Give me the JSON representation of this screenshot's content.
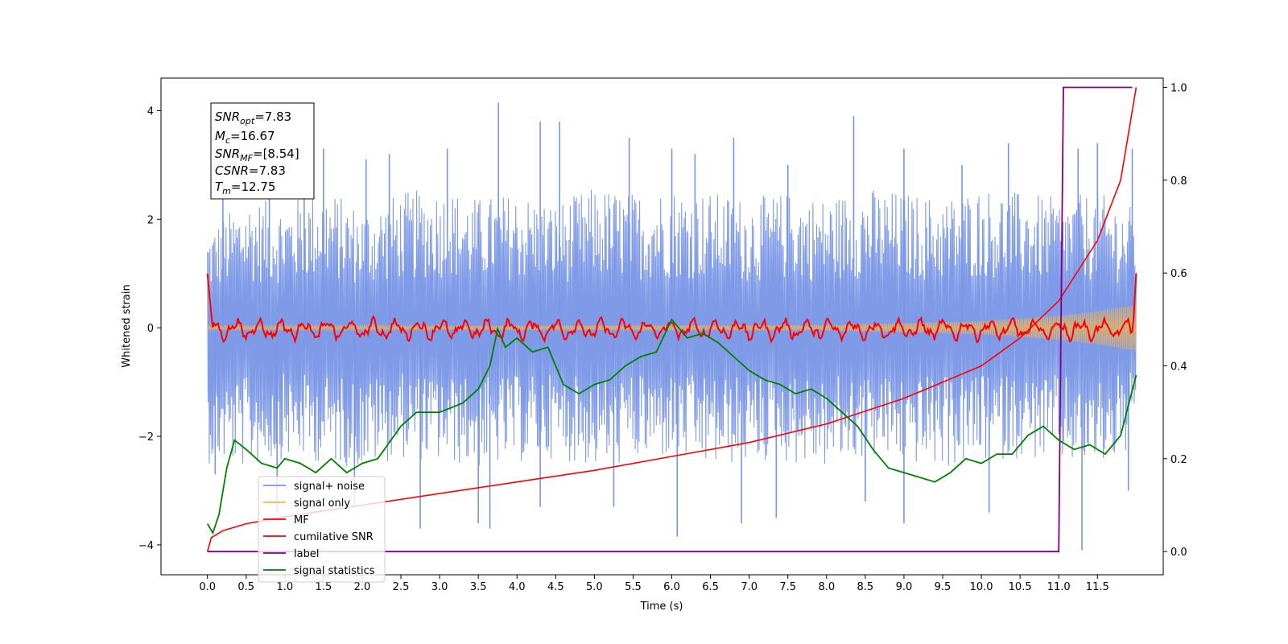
{
  "chart_data": {
    "type": "line",
    "title": "",
    "xlabel": "Time (s)",
    "ylabel": "Whitened strain",
    "xlim": [
      -0.6,
      12.35
    ],
    "ylim_left": [
      -4.55,
      4.6
    ],
    "ylim_right": [
      -0.05,
      1.02
    ],
    "x_ticks": [
      0.0,
      0.5,
      1.0,
      1.5,
      2.0,
      2.5,
      3.0,
      3.5,
      4.0,
      4.5,
      5.0,
      5.5,
      6.0,
      6.5,
      7.0,
      7.5,
      8.0,
      8.5,
      9.0,
      9.5,
      10.0,
      10.5,
      11.0,
      11.5
    ],
    "x_tick_labels": [
      "0.0",
      "0.5",
      "1.0",
      "1.5",
      "2.0",
      "2.5",
      "3.0",
      "3.5",
      "4.0",
      "4.5",
      "5.0",
      "5.5",
      "6.0",
      "6.5",
      "7.0",
      "7.5",
      "8.0",
      "8.5",
      "9.0",
      "9.5",
      "10.0",
      "10.5",
      "11.0",
      "11.5"
    ],
    "y_left_ticks": [
      -4,
      -2,
      0,
      2,
      4
    ],
    "y_left_tick_labels": [
      "−4",
      "−2",
      "0",
      "2",
      "4"
    ],
    "y_right_ticks": [
      0.0,
      0.2,
      0.4,
      0.6,
      0.8,
      1.0
    ],
    "y_right_tick_labels": [
      "0.0",
      "0.2",
      "0.4",
      "0.6",
      "0.8",
      "1.0"
    ],
    "grid": false,
    "legend_position": "lower-left",
    "stats_box": {
      "snr_opt": {
        "base": "SNR",
        "sub": "opt",
        "value": "=7.83"
      },
      "mc": {
        "base": "M",
        "sub": "c",
        "value": "=16.67"
      },
      "snr_mf": {
        "base": "SNR",
        "sub": "MF",
        "value": "=[8.54]"
      },
      "csnr": {
        "base": "CSNR",
        "value": "=7.83"
      },
      "tm": {
        "base": "T",
        "sub": "m",
        "value": "=12.75"
      }
    },
    "series": [
      {
        "name": "signal+ noise",
        "axis": "left",
        "color": "#7895e6",
        "envelope_upper": [
          [
            0.0,
            1.8
          ],
          [
            0.5,
            2.4
          ],
          [
            1.0,
            2.3
          ],
          [
            1.5,
            2.6
          ],
          [
            2.0,
            2.2
          ],
          [
            2.5,
            2.5
          ],
          [
            3.0,
            2.6
          ],
          [
            3.5,
            2.4
          ],
          [
            4.0,
            2.5
          ],
          [
            4.5,
            2.3
          ],
          [
            5.0,
            2.6
          ],
          [
            5.5,
            2.5
          ],
          [
            6.0,
            2.6
          ],
          [
            6.5,
            2.5
          ],
          [
            7.0,
            2.4
          ],
          [
            7.5,
            2.5
          ],
          [
            8.0,
            2.4
          ],
          [
            8.5,
            2.6
          ],
          [
            9.0,
            2.5
          ],
          [
            9.5,
            2.4
          ],
          [
            10.0,
            2.6
          ],
          [
            10.5,
            2.5
          ],
          [
            11.0,
            2.4
          ],
          [
            11.5,
            2.5
          ],
          [
            12.0,
            2.2
          ]
        ],
        "envelope_lower": [
          [
            0.0,
            -2.5
          ],
          [
            0.5,
            -2.6
          ],
          [
            1.0,
            -2.4
          ],
          [
            1.5,
            -2.5
          ],
          [
            2.0,
            -2.6
          ],
          [
            2.5,
            -2.4
          ],
          [
            3.0,
            -2.5
          ],
          [
            3.5,
            -2.6
          ],
          [
            4.0,
            -2.5
          ],
          [
            4.5,
            -2.4
          ],
          [
            5.0,
            -2.6
          ],
          [
            5.5,
            -2.5
          ],
          [
            6.0,
            -2.4
          ],
          [
            6.5,
            -2.6
          ],
          [
            7.0,
            -2.5
          ],
          [
            7.5,
            -2.5
          ],
          [
            8.0,
            -2.6
          ],
          [
            8.5,
            -2.4
          ],
          [
            9.0,
            -2.5
          ],
          [
            9.5,
            -2.6
          ],
          [
            10.0,
            -2.5
          ],
          [
            10.5,
            -2.4
          ],
          [
            11.0,
            -2.5
          ],
          [
            11.5,
            -2.6
          ],
          [
            12.0,
            -2.3
          ]
        ],
        "peaks": [
          [
            0.2,
            2.5
          ],
          [
            0.8,
            3.0
          ],
          [
            1.25,
            3.2
          ],
          [
            1.5,
            3.3
          ],
          [
            2.05,
            3.1
          ],
          [
            2.35,
            3.2
          ],
          [
            3.1,
            3.3
          ],
          [
            3.76,
            4.15
          ],
          [
            4.3,
            3.8
          ],
          [
            4.55,
            3.8
          ],
          [
            5.45,
            3.5
          ],
          [
            6.0,
            3.3
          ],
          [
            6.3,
            3.2
          ],
          [
            6.8,
            3.5
          ],
          [
            7.5,
            3.0
          ],
          [
            8.35,
            3.9
          ],
          [
            9.0,
            3.3
          ],
          [
            9.75,
            3.0
          ],
          [
            10.35,
            3.4
          ],
          [
            11.25,
            3.3
          ],
          [
            11.5,
            3.4
          ],
          [
            11.95,
            3.3
          ]
        ],
        "troughs": [
          [
            0.1,
            -2.7
          ],
          [
            0.9,
            -3.4
          ],
          [
            1.9,
            -3.3
          ],
          [
            2.75,
            -3.7
          ],
          [
            3.5,
            -3.6
          ],
          [
            3.65,
            -3.7
          ],
          [
            4.3,
            -3.3
          ],
          [
            5.25,
            -3.3
          ],
          [
            6.07,
            -3.85
          ],
          [
            6.9,
            -3.6
          ],
          [
            7.35,
            -3.5
          ],
          [
            8.5,
            -3.2
          ],
          [
            9.0,
            -3.6
          ],
          [
            10.1,
            -3.4
          ],
          [
            11.3,
            -4.1
          ],
          [
            11.9,
            -3.0
          ]
        ]
      },
      {
        "name": "signal only",
        "axis": "left",
        "color": "#f5b54a",
        "amplitude": [
          [
            0.0,
            0.03
          ],
          [
            8.0,
            0.05
          ],
          [
            10.0,
            0.12
          ],
          [
            11.0,
            0.22
          ],
          [
            11.5,
            0.3
          ],
          [
            12.0,
            0.42
          ]
        ]
      },
      {
        "name": "MF",
        "axis": "left",
        "color": "#ff0000",
        "start_value": 1.0,
        "end_value": 1.0,
        "band": 0.22
      },
      {
        "name": "cumilative SNR",
        "axis": "right",
        "color": "#ff0000",
        "points": [
          [
            0.0,
            0.0
          ],
          [
            0.05,
            0.03
          ],
          [
            0.2,
            0.045
          ],
          [
            0.5,
            0.06
          ],
          [
            1.0,
            0.075
          ],
          [
            2.0,
            0.1
          ],
          [
            3.0,
            0.125
          ],
          [
            4.0,
            0.15
          ],
          [
            5.0,
            0.175
          ],
          [
            6.0,
            0.205
          ],
          [
            7.0,
            0.235
          ],
          [
            8.0,
            0.275
          ],
          [
            9.0,
            0.33
          ],
          [
            10.0,
            0.4
          ],
          [
            10.5,
            0.46
          ],
          [
            11.0,
            0.54
          ],
          [
            11.5,
            0.67
          ],
          [
            11.8,
            0.8
          ],
          [
            12.0,
            1.0
          ]
        ]
      },
      {
        "name": "label",
        "axis": "right",
        "color": "#800080",
        "points": [
          [
            0.0,
            0.0
          ],
          [
            11.0,
            0.0
          ],
          [
            11.06,
            1.0
          ],
          [
            11.95,
            1.0
          ]
        ]
      },
      {
        "name": "signal statistics",
        "axis": "right",
        "color": "#008000",
        "points": [
          [
            0.0,
            0.06
          ],
          [
            0.07,
            0.04
          ],
          [
            0.15,
            0.08
          ],
          [
            0.25,
            0.18
          ],
          [
            0.35,
            0.24
          ],
          [
            0.5,
            0.22
          ],
          [
            0.7,
            0.19
          ],
          [
            0.9,
            0.18
          ],
          [
            1.0,
            0.2
          ],
          [
            1.2,
            0.19
          ],
          [
            1.4,
            0.17
          ],
          [
            1.6,
            0.2
          ],
          [
            1.8,
            0.17
          ],
          [
            2.0,
            0.19
          ],
          [
            2.2,
            0.2
          ],
          [
            2.5,
            0.27
          ],
          [
            2.7,
            0.3
          ],
          [
            3.0,
            0.3
          ],
          [
            3.3,
            0.32
          ],
          [
            3.5,
            0.35
          ],
          [
            3.65,
            0.4
          ],
          [
            3.75,
            0.48
          ],
          [
            3.85,
            0.44
          ],
          [
            4.0,
            0.46
          ],
          [
            4.2,
            0.43
          ],
          [
            4.4,
            0.44
          ],
          [
            4.6,
            0.36
          ],
          [
            4.8,
            0.34
          ],
          [
            5.0,
            0.36
          ],
          [
            5.2,
            0.37
          ],
          [
            5.4,
            0.4
          ],
          [
            5.6,
            0.42
          ],
          [
            5.8,
            0.43
          ],
          [
            6.0,
            0.5
          ],
          [
            6.2,
            0.46
          ],
          [
            6.4,
            0.47
          ],
          [
            6.6,
            0.45
          ],
          [
            6.8,
            0.42
          ],
          [
            7.0,
            0.39
          ],
          [
            7.2,
            0.37
          ],
          [
            7.4,
            0.36
          ],
          [
            7.6,
            0.34
          ],
          [
            7.8,
            0.35
          ],
          [
            8.0,
            0.33
          ],
          [
            8.2,
            0.3
          ],
          [
            8.4,
            0.27
          ],
          [
            8.6,
            0.22
          ],
          [
            8.8,
            0.18
          ],
          [
            9.0,
            0.17
          ],
          [
            9.2,
            0.16
          ],
          [
            9.4,
            0.15
          ],
          [
            9.6,
            0.17
          ],
          [
            9.8,
            0.2
          ],
          [
            10.0,
            0.19
          ],
          [
            10.2,
            0.21
          ],
          [
            10.4,
            0.21
          ],
          [
            10.6,
            0.25
          ],
          [
            10.8,
            0.27
          ],
          [
            11.0,
            0.24
          ],
          [
            11.2,
            0.22
          ],
          [
            11.4,
            0.23
          ],
          [
            11.6,
            0.21
          ],
          [
            11.8,
            0.25
          ],
          [
            12.0,
            0.38
          ]
        ]
      }
    ]
  }
}
